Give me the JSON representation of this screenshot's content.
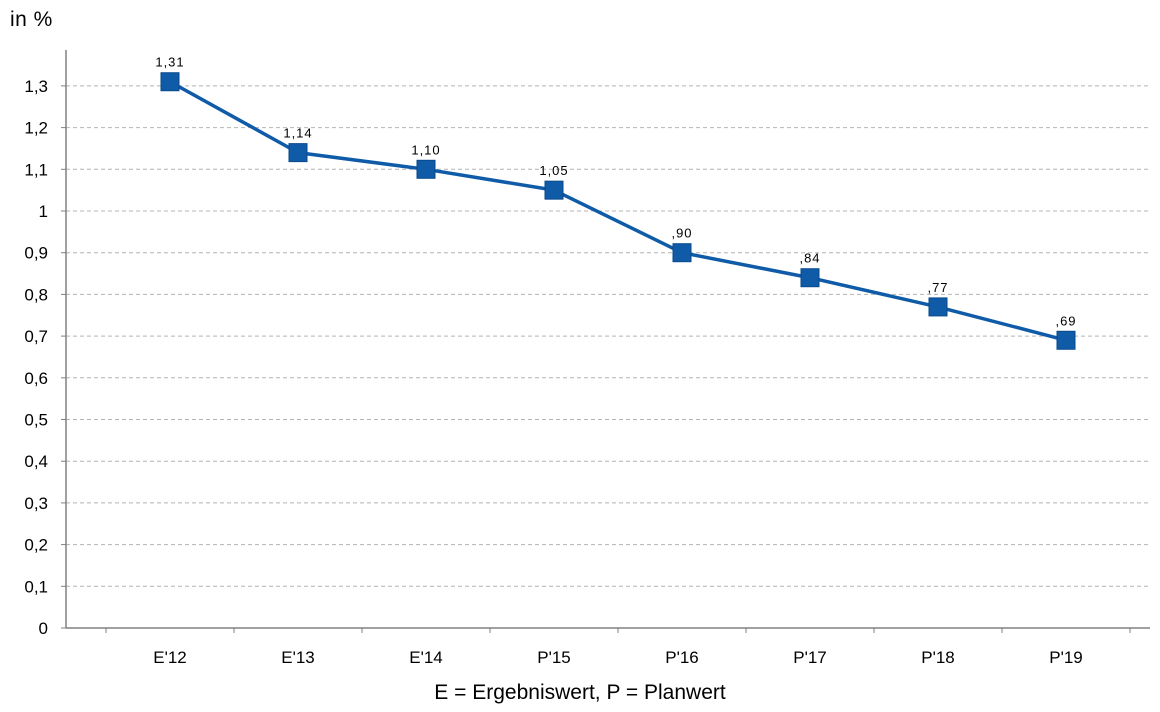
{
  "unit_label": "in %",
  "footnote": "E = Ergebniswert, P = Planwert",
  "colors": {
    "series": "#0F5BA8",
    "grid": "#B4B4B4",
    "axis": "#808080"
  },
  "chart_data": {
    "type": "line",
    "categories": [
      "E'12",
      "E'13",
      "E'14",
      "P'15",
      "P'16",
      "P'17",
      "P'18",
      "P'19"
    ],
    "series": [
      {
        "values": [
          1.31,
          1.14,
          1.1,
          1.05,
          0.9,
          0.84,
          0.77,
          0.69
        ],
        "data_labels": [
          "1,31",
          "1,14",
          "1,10",
          "1,05",
          ",90",
          ",84",
          ",77",
          ",69"
        ],
        "marker": "square"
      }
    ],
    "ylim": [
      0,
      1.3
    ],
    "yticks": [
      {
        "value": 0,
        "label": "0"
      },
      {
        "value": 0.1,
        "label": "0,1"
      },
      {
        "value": 0.2,
        "label": "0,2"
      },
      {
        "value": 0.3,
        "label": "0,3"
      },
      {
        "value": 0.4,
        "label": "0,4"
      },
      {
        "value": 0.5,
        "label": "0,5"
      },
      {
        "value": 0.6,
        "label": "0,6"
      },
      {
        "value": 0.7,
        "label": "0,7"
      },
      {
        "value": 0.8,
        "label": "0,8"
      },
      {
        "value": 0.9,
        "label": "0,9"
      },
      {
        "value": 1.0,
        "label": "1"
      },
      {
        "value": 1.1,
        "label": "1,1"
      },
      {
        "value": 1.2,
        "label": "1,2"
      },
      {
        "value": 1.3,
        "label": "1,3"
      }
    ],
    "grid": true,
    "legend": "none"
  }
}
